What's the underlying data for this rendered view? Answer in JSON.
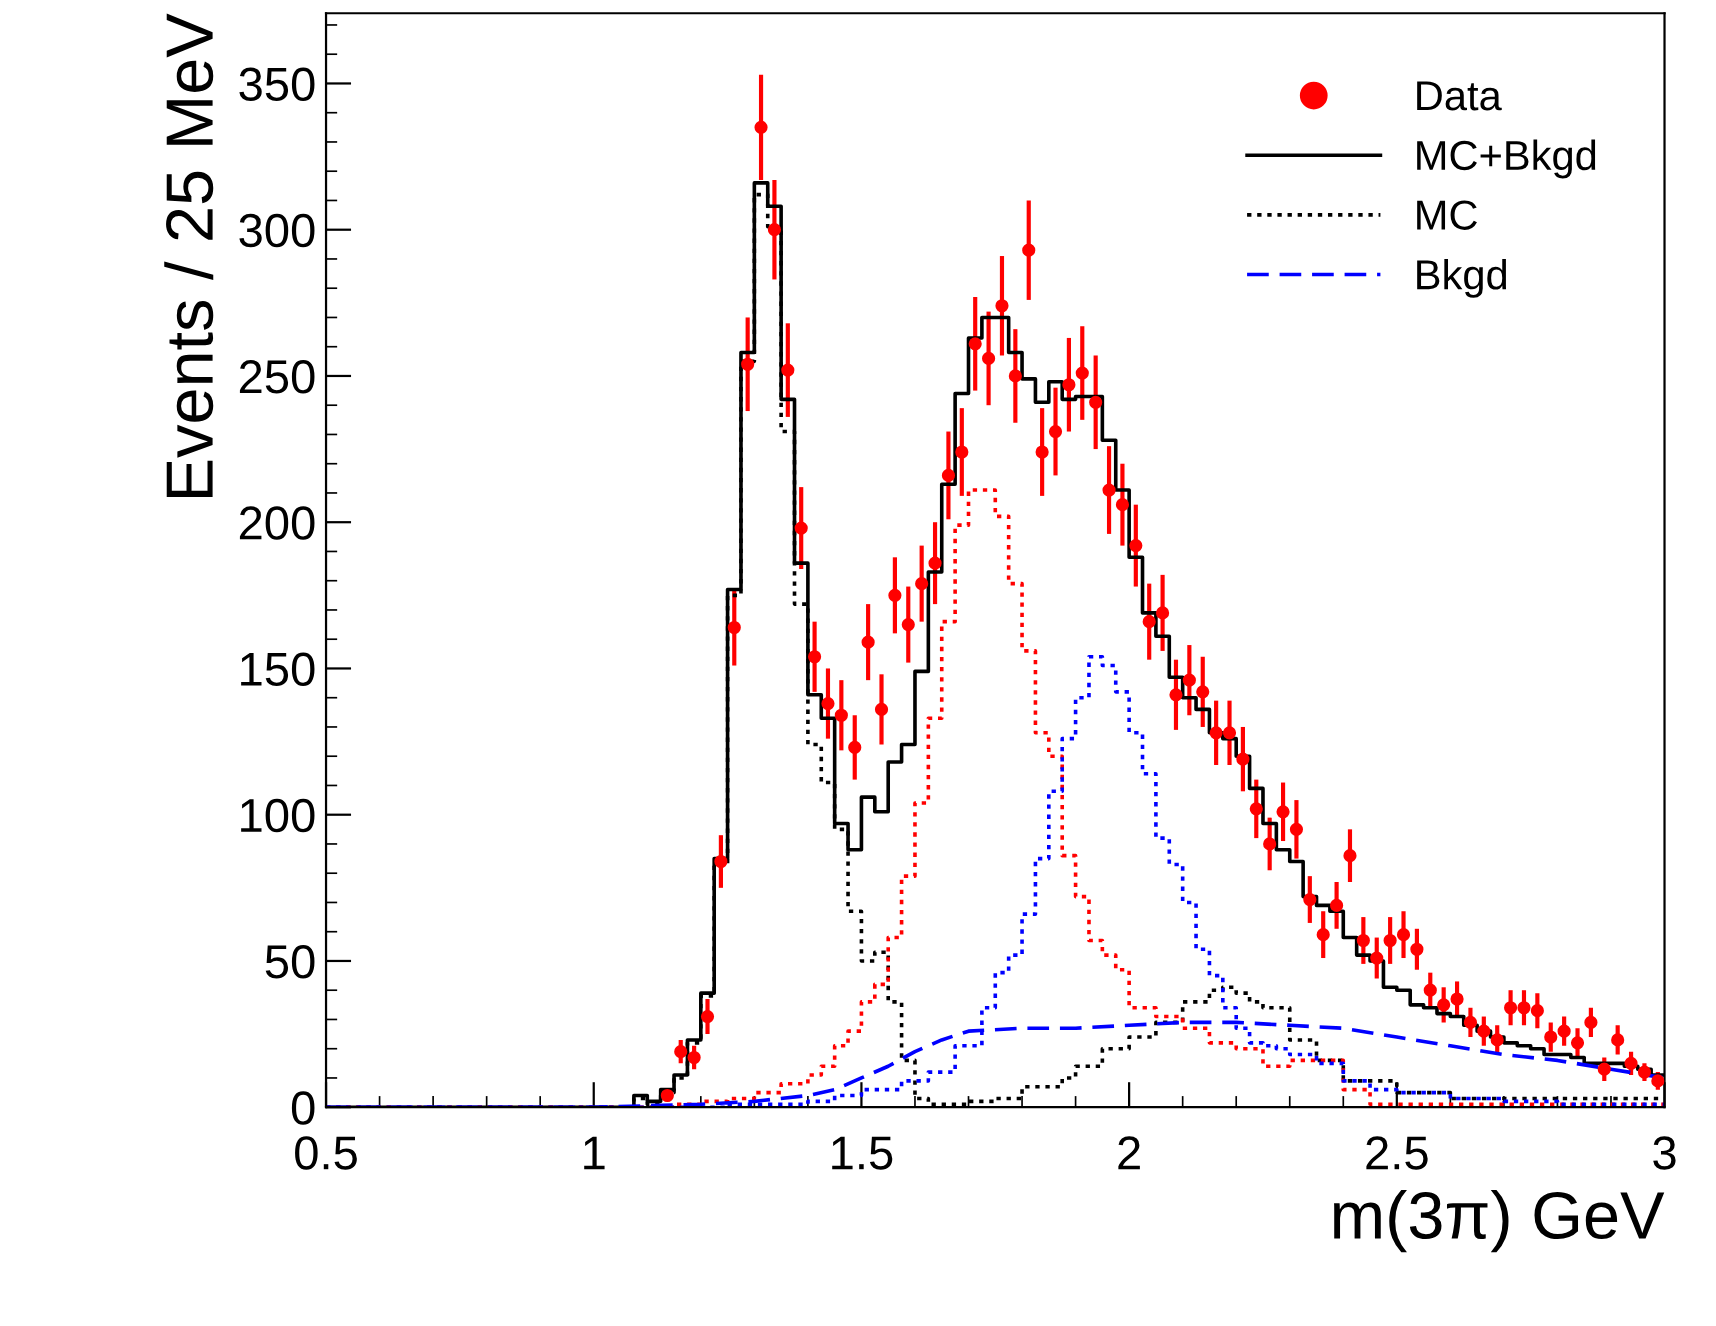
{
  "chart_data": {
    "type": "step",
    "xlabel": "m(3π) GeV",
    "ylabel": "Events / 25 MeV",
    "xlim": [
      0.5,
      3
    ],
    "ylim": [
      0,
      374
    ],
    "xticks": [
      0.5,
      1,
      1.5,
      2,
      2.5,
      3
    ],
    "yticks": [
      0,
      50,
      100,
      150,
      200,
      250,
      300,
      350
    ],
    "grid": false,
    "legend": "top right",
    "series": [
      {
        "name": "Data",
        "type": "scatter",
        "marker": "circle",
        "color": "#ff0000",
        "x": [
          1.1375,
          1.1625,
          1.1875,
          1.2125,
          1.2375,
          1.2625,
          1.2875,
          1.3125,
          1.3375,
          1.3625,
          1.3875,
          1.4125,
          1.4375,
          1.4625,
          1.4875,
          1.5125,
          1.5375,
          1.5625,
          1.5875,
          1.6125,
          1.6375,
          1.6625,
          1.6875,
          1.7125,
          1.7375,
          1.7625,
          1.7875,
          1.8125,
          1.8375,
          1.8625,
          1.8875,
          1.9125,
          1.9375,
          1.9625,
          1.9875,
          2.0125,
          2.0375,
          2.0625,
          2.0875,
          2.1125,
          2.1375,
          2.1625,
          2.1875,
          2.2125,
          2.2375,
          2.2625,
          2.2875,
          2.3125,
          2.3375,
          2.3625,
          2.3875,
          2.4125,
          2.4375,
          2.4625,
          2.4875,
          2.5125,
          2.5375,
          2.5625,
          2.5875,
          2.6125,
          2.6375,
          2.6625,
          2.6875,
          2.7125,
          2.7375,
          2.7625,
          2.7875,
          2.8125,
          2.8375,
          2.8625,
          2.8875,
          2.9125,
          2.9375,
          2.9625,
          2.9875
        ],
        "values": [
          4,
          19,
          17,
          31,
          84,
          164,
          254,
          335,
          300,
          252,
          198,
          154,
          138,
          134,
          123,
          159,
          136,
          175,
          165,
          179,
          186,
          216,
          224,
          261,
          256,
          274,
          250,
          293,
          224,
          231,
          247,
          251,
          241,
          211,
          206,
          192,
          166,
          169,
          141,
          146,
          142,
          128,
          128,
          119,
          102,
          90,
          101,
          95,
          71,
          59,
          69,
          86,
          57,
          51,
          57,
          59,
          54,
          40,
          35,
          37,
          29,
          26,
          23,
          34,
          34,
          33,
          24,
          26,
          22,
          29,
          13,
          23,
          15,
          12,
          9
        ],
        "errors": [
          2,
          4,
          4,
          6,
          9,
          13,
          16,
          18,
          17,
          16,
          14,
          12,
          12,
          12,
          11,
          13,
          12,
          13,
          13,
          13,
          14,
          15,
          15,
          16,
          16,
          17,
          16,
          17,
          15,
          15,
          16,
          16,
          16,
          15,
          14,
          14,
          13,
          13,
          12,
          12,
          12,
          11,
          11,
          11,
          10,
          9,
          10,
          10,
          8,
          8,
          8,
          9,
          8,
          7,
          8,
          8,
          7,
          6,
          6,
          6,
          5,
          5,
          5,
          6,
          6,
          6,
          5,
          5,
          5,
          5,
          4,
          5,
          4,
          3,
          3
        ]
      },
      {
        "name": "MC+Bkgd",
        "line_style": "solid",
        "color": "#000000",
        "x": [
          0.5,
          1.075,
          1.1,
          1.125,
          1.15,
          1.175,
          1.2,
          1.225,
          1.25,
          1.275,
          1.3,
          1.325,
          1.35,
          1.375,
          1.4,
          1.425,
          1.45,
          1.475,
          1.5,
          1.525,
          1.55,
          1.575,
          1.6,
          1.625,
          1.65,
          1.675,
          1.7,
          1.725,
          1.75,
          1.775,
          1.8,
          1.825,
          1.85,
          1.875,
          1.9,
          1.925,
          1.95,
          1.975,
          2.0,
          2.025,
          2.05,
          2.075,
          2.1,
          2.125,
          2.15,
          2.175,
          2.2,
          2.225,
          2.25,
          2.275,
          2.3,
          2.325,
          2.35,
          2.375,
          2.4,
          2.425,
          2.45,
          2.475,
          2.5,
          2.525,
          2.55,
          2.575,
          2.6,
          2.625,
          2.65,
          2.675,
          2.7,
          2.725,
          2.75,
          2.775,
          2.8,
          2.825,
          2.85,
          2.875,
          2.9,
          2.925,
          2.95,
          2.975,
          3.0
        ],
        "values": [
          0,
          4,
          2,
          6,
          11,
          23,
          39,
          85,
          177,
          258,
          316,
          308,
          242,
          186,
          141,
          133,
          97,
          88,
          106,
          101,
          118,
          124,
          149,
          183,
          213,
          244,
          263,
          270,
          270,
          258,
          249,
          241,
          248,
          242,
          243,
          243,
          228,
          211,
          188,
          169,
          161,
          147,
          140,
          136,
          128,
          126,
          120,
          109,
          97,
          88,
          84,
          72,
          69,
          67,
          58,
          52,
          50,
          41,
          40,
          35,
          34,
          32,
          31,
          28,
          26,
          24,
          22,
          21,
          20,
          18,
          18,
          17,
          15,
          15,
          15,
          14,
          13,
          11,
          11
        ]
      },
      {
        "name": "MC",
        "line_style": "dotted",
        "color": "#000000",
        "x": [
          0.5,
          1.075,
          1.1,
          1.125,
          1.15,
          1.175,
          1.2,
          1.225,
          1.25,
          1.275,
          1.3,
          1.325,
          1.35,
          1.375,
          1.4,
          1.425,
          1.45,
          1.475,
          1.5,
          1.525,
          1.55,
          1.575,
          1.6,
          1.625,
          1.7,
          1.75,
          1.8,
          1.875,
          1.9,
          1.95,
          2.0,
          2.05,
          2.1,
          2.15,
          2.175,
          2.2,
          2.225,
          2.25,
          2.3,
          2.35,
          2.4,
          2.5,
          2.6,
          3.0
        ],
        "values": [
          0,
          3,
          1,
          5,
          10,
          22,
          38,
          83,
          175,
          255,
          312,
          301,
          231,
          172,
          124,
          111,
          95,
          67,
          50,
          53,
          36,
          16,
          3,
          1,
          2,
          3,
          7,
          10,
          14,
          20,
          24,
          29,
          36,
          40,
          41,
          39,
          36,
          34,
          23,
          16,
          9,
          5,
          3,
          3
        ]
      },
      {
        "line_style": "dotted",
        "color": "#ff0000",
        "x": [
          0.5,
          1.15,
          1.2,
          1.25,
          1.3,
          1.35,
          1.4,
          1.425,
          1.45,
          1.475,
          1.5,
          1.525,
          1.55,
          1.575,
          1.6,
          1.625,
          1.65,
          1.675,
          1.7,
          1.725,
          1.75,
          1.775,
          1.8,
          1.825,
          1.85,
          1.875,
          1.9,
          1.925,
          1.95,
          1.975,
          2.0,
          2.05,
          2.1,
          2.15,
          2.2,
          2.25,
          2.3,
          2.4,
          2.45,
          3.0
        ],
        "values": [
          0,
          1,
          2,
          3,
          5,
          8,
          11,
          14,
          21,
          26,
          36,
          42,
          58,
          79,
          104,
          133,
          166,
          199,
          211,
          211,
          202,
          179,
          156,
          128,
          120,
          86,
          72,
          57,
          52,
          47,
          34,
          31,
          27,
          22,
          20,
          14,
          16,
          6,
          1,
          1
        ]
      },
      {
        "line_style": "dotted",
        "color": "#0000ff",
        "x": [
          0.5,
          1.25,
          1.4,
          1.45,
          1.5,
          1.575,
          1.625,
          1.675,
          1.725,
          1.75,
          1.775,
          1.8,
          1.825,
          1.85,
          1.875,
          1.9,
          1.925,
          1.95,
          1.975,
          2.0,
          2.025,
          2.05,
          2.075,
          2.1,
          2.125,
          2.15,
          2.175,
          2.2,
          2.225,
          2.25,
          2.275,
          2.3,
          2.35,
          2.4,
          2.45,
          2.5,
          2.6,
          2.7,
          2.8,
          3.0
        ],
        "values": [
          0,
          1,
          2,
          4,
          6,
          9,
          12,
          21,
          34,
          46,
          52,
          66,
          85,
          108,
          126,
          140,
          154,
          151,
          142,
          128,
          114,
          92,
          83,
          70,
          54,
          45,
          34,
          27,
          22,
          21,
          20,
          18,
          15,
          9,
          6,
          5,
          3,
          2,
          1,
          1
        ]
      },
      {
        "name": "Bkgd",
        "type": "line",
        "line_style": "dashed",
        "color": "#0000ff",
        "x": [
          0.5,
          1.0,
          1.2,
          1.3,
          1.4,
          1.45,
          1.5,
          1.55,
          1.6,
          1.65,
          1.7,
          1.8,
          1.9,
          2.0,
          2.1,
          2.2,
          2.3,
          2.4,
          2.5,
          2.6,
          2.7,
          2.8,
          2.9,
          3.0
        ],
        "values": [
          0,
          0,
          1,
          2,
          4,
          6,
          10,
          14,
          19,
          23,
          26,
          27,
          27,
          28,
          29,
          29,
          28,
          27,
          24,
          21,
          18,
          16,
          13,
          10
        ]
      }
    ]
  }
}
